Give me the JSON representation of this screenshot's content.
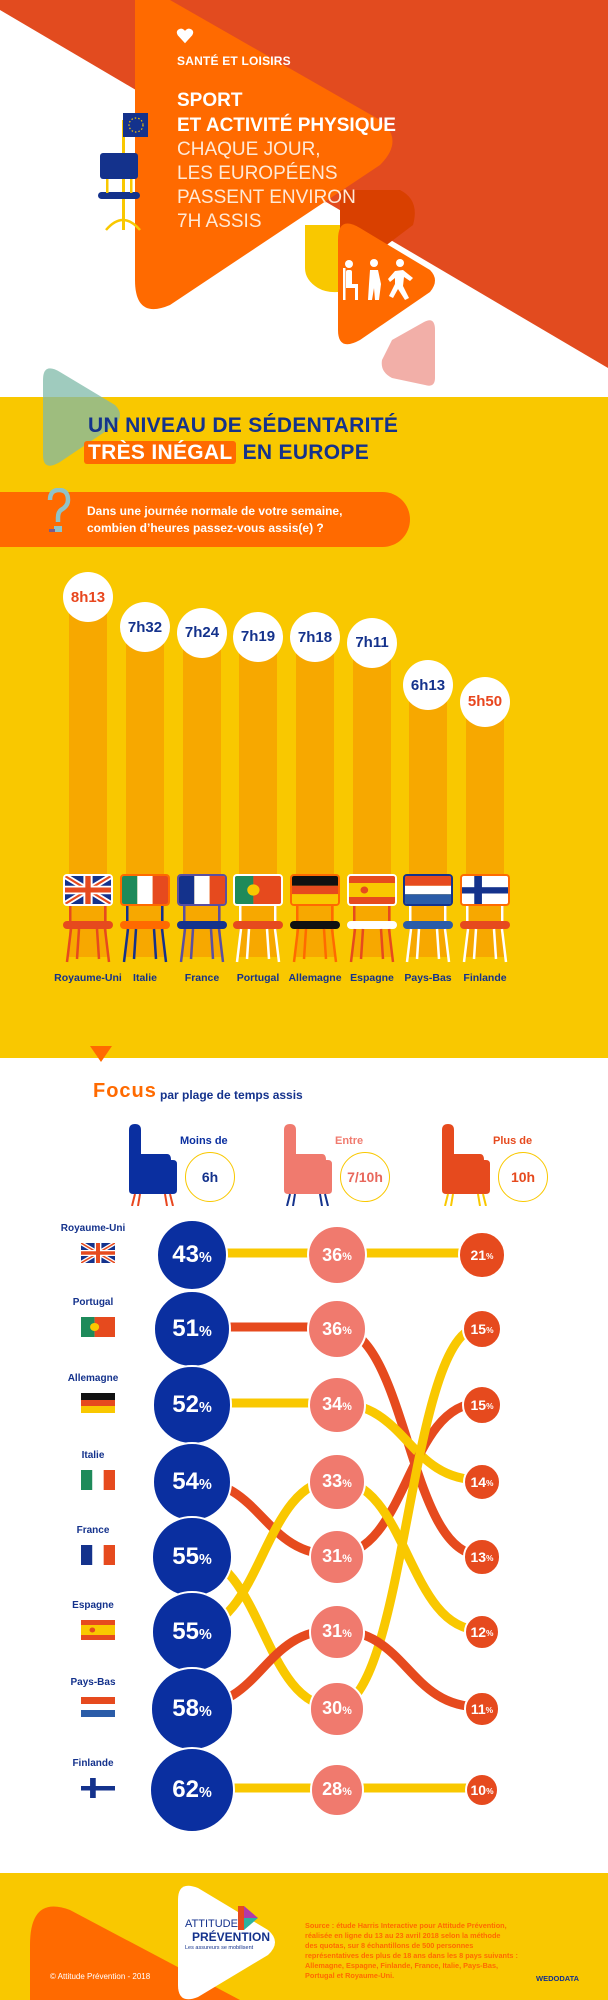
{
  "header": {
    "category": "SANTÉ ET LOISIRS",
    "title_lines": [
      "SPORT",
      "ET ACTIVITÉ PHYSIQUE"
    ],
    "subtitle_lines": [
      "CHAQUE JOUR,",
      "LES EUROPÉENS",
      "PASSENT ENVIRON",
      "7H ASSIS"
    ],
    "icons": [
      "heart-icon",
      "eu-flag-chair-icon",
      "sitting-walking-running-icon"
    ]
  },
  "section1": {
    "heading_line1": "UN NIVEAU DE SÉDENTARITÉ",
    "heading_highlight": "TRÈS INÉGAL",
    "heading_rest": "EN EUROPE",
    "question_lines": [
      "Dans une journée normale de votre semaine,",
      "combien d’heures passez-vous assis(e) ?"
    ],
    "countries": [
      {
        "name": "Royaume-Uni",
        "flag": "uk",
        "time": "8h13",
        "minutes": 493,
        "time_color": "#E8461E"
      },
      {
        "name": "Italie",
        "flag": "it",
        "time": "7h32",
        "minutes": 452,
        "time_color": "#14328C"
      },
      {
        "name": "France",
        "flag": "fr",
        "time": "7h24",
        "minutes": 444,
        "time_color": "#14328C"
      },
      {
        "name": "Portugal",
        "flag": "pt",
        "time": "7h19",
        "minutes": 439,
        "time_color": "#14328C"
      },
      {
        "name": "Allemagne",
        "flag": "de",
        "time": "7h18",
        "minutes": 438,
        "time_color": "#14328C"
      },
      {
        "name": "Espagne",
        "flag": "es",
        "time": "7h11",
        "minutes": 431,
        "time_color": "#14328C"
      },
      {
        "name": "Pays-Bas",
        "flag": "nl",
        "time": "6h13",
        "minutes": 373,
        "time_color": "#14328C"
      },
      {
        "name": "Finlande",
        "flag": "fi",
        "time": "5h50",
        "minutes": 350,
        "time_color": "#E8461E"
      }
    ]
  },
  "focus": {
    "title": "Focus",
    "subtitle": "par plage de temps assis",
    "percent_sign": "%",
    "categories": [
      {
        "label": "Moins de",
        "clock": "6h",
        "color": "#0A2FA0",
        "leg_color": "#E8461E"
      },
      {
        "label": "Entre",
        "clock": "7/10h",
        "color": "#F07A6E",
        "leg_color": "#14328C"
      },
      {
        "label": "Plus de",
        "clock": "10h",
        "color": "#E64A1E",
        "leg_color": "#F9C800"
      }
    ],
    "pink_values": [
      36,
      36,
      34,
      33,
      31,
      31,
      30,
      28
    ],
    "red_values": [
      21,
      15,
      15,
      14,
      13,
      12,
      11,
      10
    ],
    "rows": [
      {
        "country": "Royaume-Uni",
        "flag": "uk",
        "less_6h": 43,
        "pink_index": 0,
        "red_index": 0,
        "link_color": "#F9C800"
      },
      {
        "country": "Portugal",
        "flag": "pt",
        "less_6h": 51,
        "pink_index": 1,
        "red_index": 4,
        "link_color": "#E64A1E"
      },
      {
        "country": "Allemagne",
        "flag": "de",
        "less_6h": 52,
        "pink_index": 2,
        "red_index": 3,
        "link_color": "#F9C800"
      },
      {
        "country": "Italie",
        "flag": "it",
        "less_6h": 54,
        "pink_index": 4,
        "red_index": 2,
        "link_color": "#E64A1E"
      },
      {
        "country": "France",
        "flag": "fr",
        "less_6h": 55,
        "pink_index": 6,
        "red_index": 1,
        "link_color": "#F9C800"
      },
      {
        "country": "Espagne",
        "flag": "es",
        "less_6h": 55,
        "pink_index": 3,
        "red_index": 5,
        "link_color": "#F9C800"
      },
      {
        "country": "Pays-Bas",
        "flag": "nl",
        "less_6h": 58,
        "pink_index": 5,
        "red_index": 6,
        "link_color": "#E64A1E"
      },
      {
        "country": "Finlande",
        "flag": "fi",
        "less_6h": 62,
        "pink_index": 7,
        "red_index": 7,
        "link_color": "#F9C800"
      }
    ]
  },
  "footer": {
    "logo_line1": "ATTITUDE",
    "logo_line2": "PRÉVENTION",
    "logo_tagline": "Les assureurs se mobilisent",
    "copyright": "© Attitude Prévention - 2018",
    "source_lines": [
      "Source : étude Harris Interactive pour Attitude Prévention,",
      "réalisée en ligne du 13 au 23 avril 2018 selon la méthode",
      "des quotas, sur 8 échantillons de 500 personnes",
      "représentatives des plus de 18 ans dans les 8 pays suivants :",
      "Allemagne, Espagne, Finlande, France, Italie, Pays-Bas,",
      "Portugal et Royaume-Uni."
    ],
    "credit": "WEDODATA"
  },
  "colors": {
    "orange": "#FF6A00",
    "red_orange": "#E24B1F",
    "yellow": "#F9C800",
    "bar": "#F7A800",
    "navy": "#14328C",
    "blue": "#0A2FA0",
    "pink": "#F07A6E"
  }
}
